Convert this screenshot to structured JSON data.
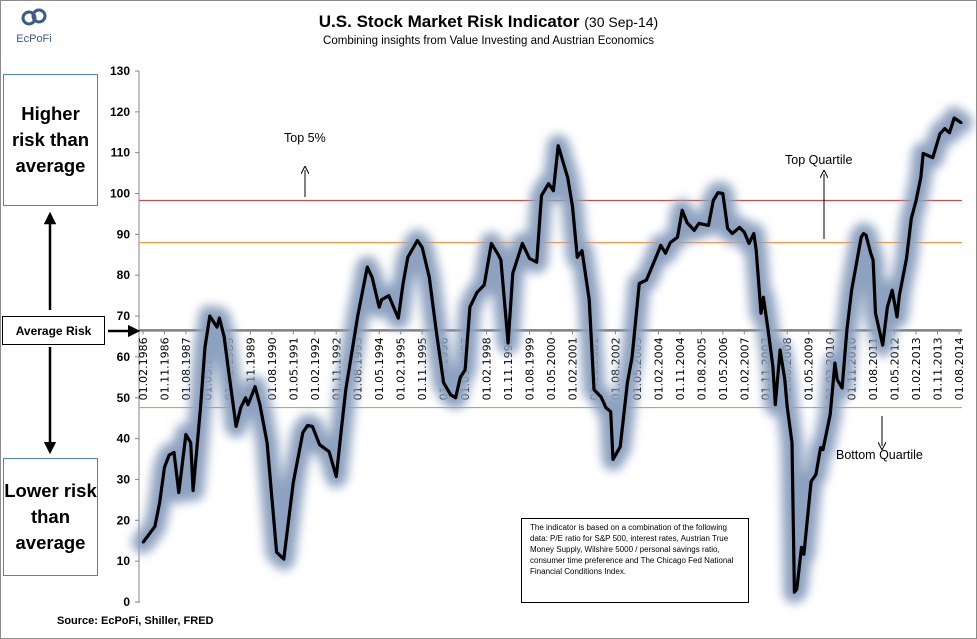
{
  "logo": {
    "text": "EcPoFi"
  },
  "header": {
    "title": "U.S. Stock Market Risk Indicator",
    "title_date": "(30 Sep-14)",
    "subtitle": "Combining insights from Value Investing and Austrian Economics"
  },
  "side": {
    "higher": "Higher risk than average",
    "average": "Average Risk",
    "lower": "Lower risk than average"
  },
  "source": "Source: EcPoFi,  Shiller, FRED",
  "info_box": "The indicator is based on a combination of the following data:  P/E ratio for S&P 500, interest rates, Austrian True Money Supply, Wilshire 5000 / personal savings ratio, consumer time preference  and The Chicago Fed National Financial Conditions Index.",
  "chart_data": {
    "type": "line",
    "title": "U.S. Stock Market Risk Indicator (30 Sep-14)",
    "subtitle": "Combining insights from Value Investing and Austrian Economics",
    "ylim": [
      0,
      130
    ],
    "y_ticks": [
      0,
      10,
      20,
      30,
      40,
      50,
      60,
      70,
      80,
      90,
      100,
      110,
      120,
      130
    ],
    "x_ticks": [
      "01.02.1986",
      "01.11.1986",
      "01.08.1987",
      "01.05.1988",
      "01.02.1989",
      "01.11.1989",
      "01.08.1990",
      "01.05.1991",
      "01.02.1992",
      "01.11.1992",
      "01.08.1993",
      "01.05.1994",
      "01.02.1995",
      "01.11.1995",
      "01.08.1996",
      "01.05.1997",
      "01.02.1998",
      "01.11.1998",
      "01.08.1999",
      "01.05.2000",
      "01.02.2001",
      "01.11.2001",
      "01.08.2002",
      "01.05.2003",
      "01.02.2004",
      "01.11.2004",
      "01.08.2005",
      "01.05.2006",
      "01.02.2007",
      "01.11.2007",
      "01.08.2008",
      "01.05.2009",
      "01.02.2010",
      "01.11.2010",
      "01.08.2011",
      "01.05.2012",
      "01.02.2013",
      "01.11.2013",
      "01.08.2014"
    ],
    "grid": false,
    "series_color": "#000000",
    "glow_color": "#8da2c0",
    "x_axis_crosses_at": 66.5,
    "reference_lines": [
      {
        "label": "Top 5%",
        "value": 98.3,
        "color": "#c0504d"
      },
      {
        "label": "Top Quartile",
        "value": 88.0,
        "color": "#f79646"
      },
      {
        "label": "Average Risk",
        "value": 66.5,
        "color": "#7f7f7f"
      },
      {
        "label": "Bottom Quartile",
        "value": 47.6,
        "color": "#9bbb59"
      }
    ],
    "series": [
      {
        "x": [
          "1986-02",
          "1986-07",
          "1986-09",
          "1986-11",
          "1987-01",
          "1987-03",
          "1987-05",
          "1987-08",
          "1987-10",
          "1987-11",
          "1988-02",
          "1988-04",
          "1988-06",
          "1988-09",
          "1988-10",
          "1988-12",
          "1989-02",
          "1989-05",
          "1989-07",
          "1989-09",
          "1989-10",
          "1990-01",
          "1990-03",
          "1990-06",
          "1990-10",
          "1991-01",
          "1991-05",
          "1991-09",
          "1991-11",
          "1992-01",
          "1992-04",
          "1992-08",
          "1992-11",
          "1993-01",
          "1993-03",
          "1993-08",
          "1993-12",
          "1994-02",
          "1994-05",
          "1994-06",
          "1994-09",
          "1995-01",
          "1995-03",
          "1995-05",
          "1995-09",
          "1995-11",
          "1996-02",
          "1996-05",
          "1996-08",
          "1996-11",
          "1997-01",
          "1997-03",
          "1997-05",
          "1997-07",
          "1997-10",
          "1998-01",
          "1998-04",
          "1998-07",
          "1998-08",
          "1998-11",
          "1999-01",
          "1999-05",
          "1999-08",
          "1999-11",
          "2000-01",
          "2000-04",
          "2000-06",
          "2000-08",
          "2000-12",
          "2001-02",
          "2001-04",
          "2001-06",
          "2001-09",
          "2001-11",
          "2002-02",
          "2002-04",
          "2002-06",
          "2002-07",
          "2002-10",
          "2003-01",
          "2003-03",
          "2003-06",
          "2003-09",
          "2004-01",
          "2004-03",
          "2004-05",
          "2004-07",
          "2004-10",
          "2004-12",
          "2005-02",
          "2005-05",
          "2005-07",
          "2005-11",
          "2006-01",
          "2006-03",
          "2006-05",
          "2006-07",
          "2006-09",
          "2006-12",
          "2007-02",
          "2007-04",
          "2007-06",
          "2007-07",
          "2007-09",
          "2007-10",
          "2007-12",
          "2008-02",
          "2008-03",
          "2008-05",
          "2008-07",
          "2008-08",
          "2008-10",
          "2008-11",
          "2008-12",
          "2009-02",
          "2009-03",
          "2009-06",
          "2009-08",
          "2009-10",
          "2009-11",
          "2010-02",
          "2010-04",
          "2010-05",
          "2010-07",
          "2010-09",
          "2010-11",
          "2011-03",
          "2011-04",
          "2011-05",
          "2011-07",
          "2011-08",
          "2011-09",
          "2011-12",
          "2012-02",
          "2012-04",
          "2012-06",
          "2012-07",
          "2012-10",
          "2012-12",
          "2013-02",
          "2013-04",
          "2013-05",
          "2013-09",
          "2013-12",
          "2014-02",
          "2014-04",
          "2014-06",
          "2014-09"
        ],
        "y": [
          14.6,
          18.5,
          24.4,
          33,
          36,
          36.6,
          26.8,
          41,
          39,
          27.3,
          47,
          62.4,
          70,
          67.3,
          69.5,
          65,
          56,
          43,
          47.6,
          50,
          48.3,
          52.7,
          48.3,
          39,
          12.2,
          10.5,
          29.3,
          41.5,
          43.2,
          43,
          38.5,
          36.8,
          30.7,
          41.5,
          52,
          70,
          82,
          79.5,
          72.2,
          74,
          75,
          69.5,
          78,
          84.4,
          88.5,
          86.8,
          79.5,
          65.9,
          53.7,
          50.7,
          50,
          55,
          56.8,
          72.2,
          75.8,
          77.6,
          87.8,
          84.9,
          83.7,
          63.4,
          80.5,
          87.8,
          84.1,
          83.2,
          99.5,
          102.4,
          100.7,
          111.7,
          103.9,
          96.8,
          84.4,
          86,
          74,
          52,
          50.2,
          47.6,
          46.6,
          34.9,
          38,
          53.7,
          60,
          78,
          78.8,
          84.4,
          87.3,
          85.4,
          88,
          89.3,
          95.9,
          92.9,
          91,
          92.7,
          92.2,
          98.3,
          100.2,
          100,
          91.5,
          90.2,
          91.7,
          90.5,
          87.8,
          90.2,
          86.1,
          70.7,
          74.6,
          66.6,
          57.6,
          48.3,
          61.7,
          54.4,
          47.8,
          39,
          2.4,
          3.2,
          13.4,
          11.7,
          29.5,
          31.2,
          37.8,
          37.3,
          45.9,
          58.5,
          54.4,
          52.4,
          66.6,
          76.3,
          89.3,
          90.2,
          89.8,
          85.4,
          83.7,
          70.7,
          62.9,
          72.2,
          76.3,
          69.8,
          75.1,
          84.1,
          93.9,
          98.3,
          103.9,
          109.8,
          108.8,
          114.6,
          115.9,
          114.9,
          118.5,
          117.3
        ]
      }
    ]
  }
}
